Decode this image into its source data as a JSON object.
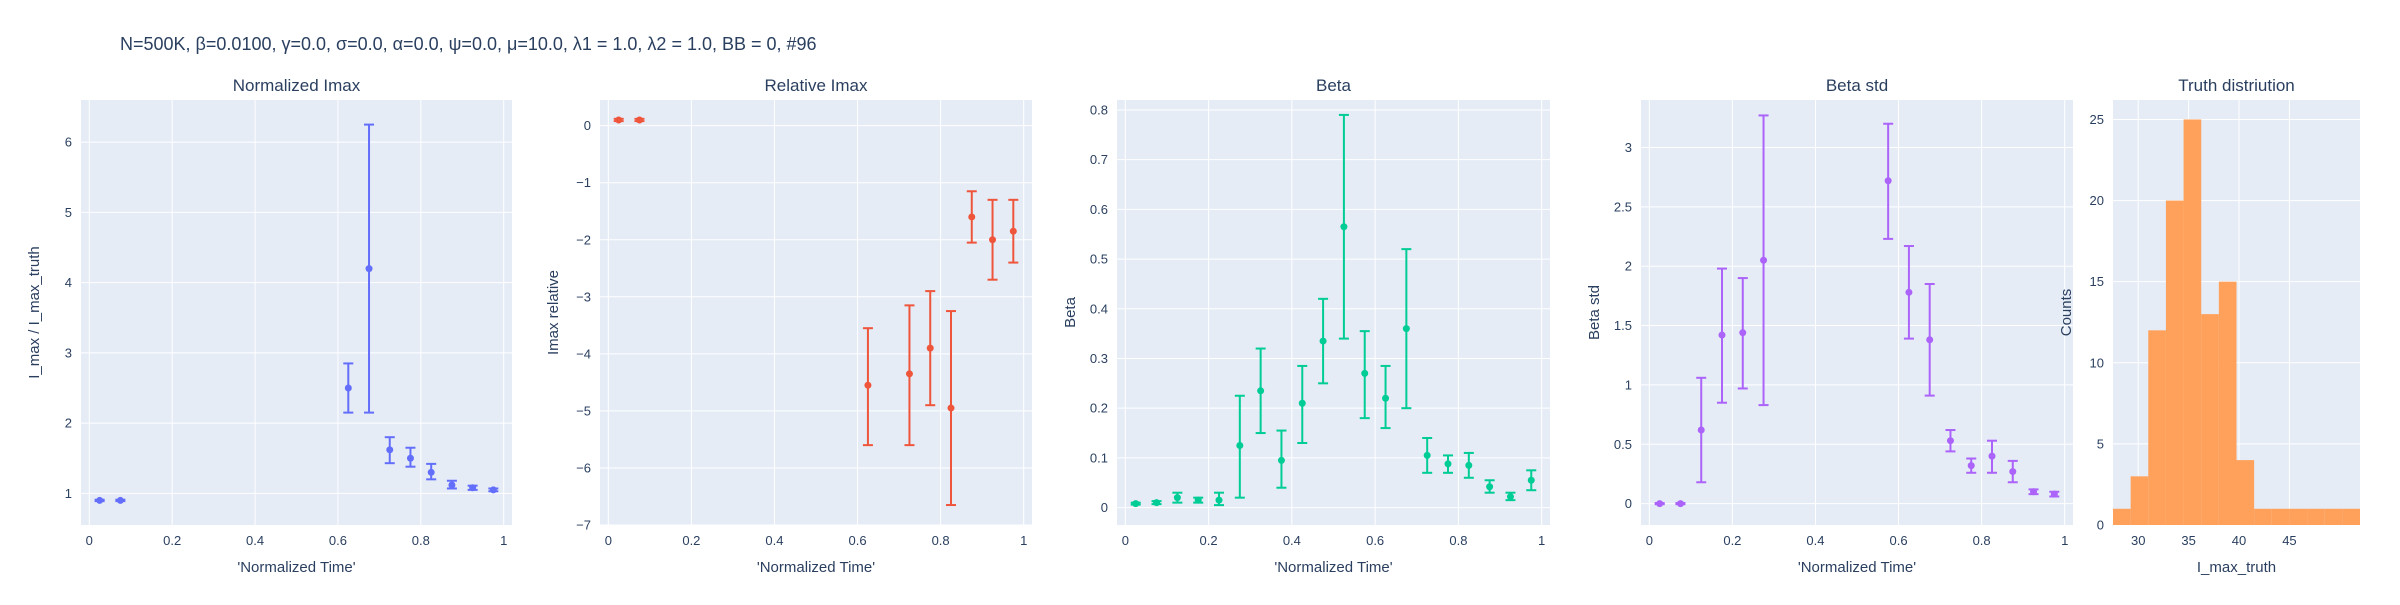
{
  "figure_title": "N=500K, β=0.0100, γ=0.0, σ=0.0,  α=0.0, ψ=0.0, μ=10.0, λ1 = 1.0, λ2 = 1.0, BB = 0, #96",
  "colors": {
    "plot_bg": "#E5ECF6",
    "grid": "#ffffff",
    "text": "#2a3f5f",
    "series": [
      "#636EFA",
      "#EF553B",
      "#00CC96",
      "#AB63FA",
      "#FFA15A"
    ]
  },
  "chart_data": [
    {
      "type": "scatter",
      "title": "Normalized Imax",
      "xlabel": "'Normalized Time'",
      "ylabel": "I_max / I_max_truth",
      "xlim": [
        -0.02,
        1.02
      ],
      "ylim": [
        0.55,
        6.6
      ],
      "xticks": [
        0,
        0.2,
        0.4,
        0.6,
        0.8,
        1
      ],
      "xtick_labels": [
        "0",
        "0.2",
        "0.4",
        "0.6",
        "0.8",
        "1"
      ],
      "yticks": [
        1,
        2,
        3,
        4,
        5,
        6
      ],
      "ytick_labels": [
        "1",
        "2",
        "3",
        "4",
        "5",
        "6"
      ],
      "color": "#636EFA",
      "points": [
        {
          "x": 0.025,
          "y": 0.9,
          "lo": 0.89,
          "hi": 0.91
        },
        {
          "x": 0.075,
          "y": 0.9,
          "lo": 0.89,
          "hi": 0.91
        },
        {
          "x": 0.625,
          "y": 2.5,
          "lo": 2.15,
          "hi": 2.85
        },
        {
          "x": 0.675,
          "y": 4.2,
          "lo": 2.15,
          "hi": 6.25
        },
        {
          "x": 0.725,
          "y": 1.62,
          "lo": 1.43,
          "hi": 1.8
        },
        {
          "x": 0.775,
          "y": 1.5,
          "lo": 1.38,
          "hi": 1.65
        },
        {
          "x": 0.825,
          "y": 1.3,
          "lo": 1.2,
          "hi": 1.42
        },
        {
          "x": 0.875,
          "y": 1.12,
          "lo": 1.07,
          "hi": 1.18
        },
        {
          "x": 0.925,
          "y": 1.08,
          "lo": 1.05,
          "hi": 1.11
        },
        {
          "x": 0.975,
          "y": 1.05,
          "lo": 1.03,
          "hi": 1.07
        }
      ]
    },
    {
      "type": "scatter",
      "title": "Relative Imax",
      "xlabel": "'Normalized Time'",
      "ylabel": "Imax relative",
      "xlim": [
        -0.02,
        1.02
      ],
      "ylim": [
        -7,
        0.45
      ],
      "xticks": [
        0,
        0.2,
        0.4,
        0.6,
        0.8,
        1
      ],
      "xtick_labels": [
        "0",
        "0.2",
        "0.4",
        "0.6",
        "0.8",
        "1"
      ],
      "yticks": [
        0,
        -1,
        -2,
        -3,
        -4,
        -5,
        -6,
        -7
      ],
      "ytick_labels": [
        "0",
        "−1",
        "−2",
        "−3",
        "−4",
        "−5",
        "−6",
        "−7"
      ],
      "color": "#EF553B",
      "points": [
        {
          "x": 0.025,
          "y": 0.1,
          "lo": 0.08,
          "hi": 0.12
        },
        {
          "x": 0.075,
          "y": 0.1,
          "lo": 0.08,
          "hi": 0.12
        },
        {
          "x": 0.625,
          "y": -4.55,
          "lo": -5.6,
          "hi": -3.55
        },
        {
          "x": 0.725,
          "y": -4.35,
          "lo": -5.6,
          "hi": -3.15
        },
        {
          "x": 0.775,
          "y": -3.9,
          "lo": -4.9,
          "hi": -2.9
        },
        {
          "x": 0.825,
          "y": -4.95,
          "lo": -6.65,
          "hi": -3.25
        },
        {
          "x": 0.875,
          "y": -1.6,
          "lo": -2.05,
          "hi": -1.15
        },
        {
          "x": 0.925,
          "y": -2.0,
          "lo": -2.7,
          "hi": -1.3
        },
        {
          "x": 0.975,
          "y": -1.85,
          "lo": -2.4,
          "hi": -1.3
        }
      ]
    },
    {
      "type": "scatter",
      "title": "Beta",
      "xlabel": "'Normalized Time'",
      "ylabel": "Beta",
      "xlim": [
        -0.02,
        1.02
      ],
      "ylim": [
        -0.035,
        0.82
      ],
      "xticks": [
        0,
        0.2,
        0.4,
        0.6,
        0.8,
        1
      ],
      "xtick_labels": [
        "0",
        "0.2",
        "0.4",
        "0.6",
        "0.8",
        "1"
      ],
      "yticks": [
        0,
        0.1,
        0.2,
        0.3,
        0.4,
        0.5,
        0.6,
        0.7,
        0.8
      ],
      "ytick_labels": [
        "0",
        "0.1",
        "0.2",
        "0.3",
        "0.4",
        "0.5",
        "0.6",
        "0.7",
        "0.8"
      ],
      "color": "#00CC96",
      "points": [
        {
          "x": 0.025,
          "y": 0.008,
          "lo": 0.006,
          "hi": 0.01
        },
        {
          "x": 0.075,
          "y": 0.01,
          "lo": 0.007,
          "hi": 0.013
        },
        {
          "x": 0.125,
          "y": 0.02,
          "lo": 0.01,
          "hi": 0.03
        },
        {
          "x": 0.175,
          "y": 0.015,
          "lo": 0.01,
          "hi": 0.02
        },
        {
          "x": 0.225,
          "y": 0.015,
          "lo": 0.005,
          "hi": 0.03
        },
        {
          "x": 0.275,
          "y": 0.125,
          "lo": 0.02,
          "hi": 0.225
        },
        {
          "x": 0.325,
          "y": 0.235,
          "lo": 0.15,
          "hi": 0.32
        },
        {
          "x": 0.375,
          "y": 0.095,
          "lo": 0.04,
          "hi": 0.155
        },
        {
          "x": 0.425,
          "y": 0.21,
          "lo": 0.13,
          "hi": 0.285
        },
        {
          "x": 0.475,
          "y": 0.335,
          "lo": 0.25,
          "hi": 0.42
        },
        {
          "x": 0.525,
          "y": 0.565,
          "lo": 0.34,
          "hi": 0.79
        },
        {
          "x": 0.575,
          "y": 0.27,
          "lo": 0.18,
          "hi": 0.355
        },
        {
          "x": 0.625,
          "y": 0.22,
          "lo": 0.16,
          "hi": 0.285
        },
        {
          "x": 0.675,
          "y": 0.36,
          "lo": 0.2,
          "hi": 0.52
        },
        {
          "x": 0.725,
          "y": 0.105,
          "lo": 0.07,
          "hi": 0.14
        },
        {
          "x": 0.775,
          "y": 0.088,
          "lo": 0.07,
          "hi": 0.105
        },
        {
          "x": 0.825,
          "y": 0.085,
          "lo": 0.06,
          "hi": 0.11
        },
        {
          "x": 0.875,
          "y": 0.042,
          "lo": 0.03,
          "hi": 0.055
        },
        {
          "x": 0.925,
          "y": 0.022,
          "lo": 0.015,
          "hi": 0.03
        },
        {
          "x": 0.975,
          "y": 0.055,
          "lo": 0.035,
          "hi": 0.075
        }
      ]
    },
    {
      "type": "scatter",
      "title": "Beta std",
      "xlabel": "'Normalized Time'",
      "ylabel": "Beta std",
      "xlim": [
        -0.02,
        1.02
      ],
      "ylim": [
        -0.18,
        3.4
      ],
      "xticks": [
        0,
        0.2,
        0.4,
        0.6,
        0.8,
        1
      ],
      "xtick_labels": [
        "0",
        "0.2",
        "0.4",
        "0.6",
        "0.8",
        "1"
      ],
      "yticks": [
        0,
        0.5,
        1,
        1.5,
        2,
        2.5,
        3
      ],
      "ytick_labels": [
        "0",
        "0.5",
        "1",
        "1.5",
        "2",
        "2.5",
        "3"
      ],
      "color": "#AB63FA",
      "points": [
        {
          "x": 0.025,
          "y": 0.0,
          "lo": -0.005,
          "hi": 0.005
        },
        {
          "x": 0.075,
          "y": 0.0,
          "lo": -0.005,
          "hi": 0.005
        },
        {
          "x": 0.125,
          "y": 0.62,
          "lo": 0.18,
          "hi": 1.06
        },
        {
          "x": 0.175,
          "y": 1.42,
          "lo": 0.85,
          "hi": 1.98
        },
        {
          "x": 0.225,
          "y": 1.44,
          "lo": 0.97,
          "hi": 1.9
        },
        {
          "x": 0.275,
          "y": 2.05,
          "lo": 0.83,
          "hi": 3.27
        },
        {
          "x": 0.575,
          "y": 2.72,
          "lo": 2.23,
          "hi": 3.2
        },
        {
          "x": 0.625,
          "y": 1.78,
          "lo": 1.39,
          "hi": 2.17
        },
        {
          "x": 0.675,
          "y": 1.38,
          "lo": 0.91,
          "hi": 1.85
        },
        {
          "x": 0.725,
          "y": 0.53,
          "lo": 0.44,
          "hi": 0.62
        },
        {
          "x": 0.775,
          "y": 0.32,
          "lo": 0.26,
          "hi": 0.38
        },
        {
          "x": 0.825,
          "y": 0.4,
          "lo": 0.26,
          "hi": 0.53
        },
        {
          "x": 0.875,
          "y": 0.27,
          "lo": 0.18,
          "hi": 0.36
        },
        {
          "x": 0.925,
          "y": 0.1,
          "lo": 0.08,
          "hi": 0.12
        },
        {
          "x": 0.975,
          "y": 0.08,
          "lo": 0.06,
          "hi": 0.1
        }
      ]
    },
    {
      "type": "bar",
      "title": "Truth distriution",
      "xlabel": "I_max_truth",
      "ylabel": "Counts",
      "xlim": [
        27.5,
        52
      ],
      "ylim": [
        0,
        26.2
      ],
      "xticks": [
        30,
        35,
        40,
        45
      ],
      "xtick_labels": [
        "30",
        "35",
        "40",
        "45"
      ],
      "yticks": [
        0,
        5,
        10,
        15,
        20,
        25
      ],
      "ytick_labels": [
        "0",
        "5",
        "10",
        "15",
        "20",
        "25"
      ],
      "color": "#FFA15A",
      "bins": [
        {
          "x0": 27.5,
          "x1": 29.25,
          "count": 1
        },
        {
          "x0": 29.25,
          "x1": 31,
          "count": 3
        },
        {
          "x0": 31,
          "x1": 32.75,
          "count": 12
        },
        {
          "x0": 32.75,
          "x1": 34.5,
          "count": 20
        },
        {
          "x0": 34.5,
          "x1": 36.25,
          "count": 25
        },
        {
          "x0": 36.25,
          "x1": 38,
          "count": 13
        },
        {
          "x0": 38,
          "x1": 39.75,
          "count": 15
        },
        {
          "x0": 39.75,
          "x1": 41.5,
          "count": 4
        },
        {
          "x0": 41.5,
          "x1": 43.25,
          "count": 1
        },
        {
          "x0": 43.25,
          "x1": 45,
          "count": 1
        },
        {
          "x0": 45,
          "x1": 46.75,
          "count": 1
        },
        {
          "x0": 46.75,
          "x1": 48.5,
          "count": 1
        },
        {
          "x0": 48.5,
          "x1": 50.25,
          "count": 1
        },
        {
          "x0": 50.25,
          "x1": 52,
          "count": 1
        }
      ]
    }
  ]
}
